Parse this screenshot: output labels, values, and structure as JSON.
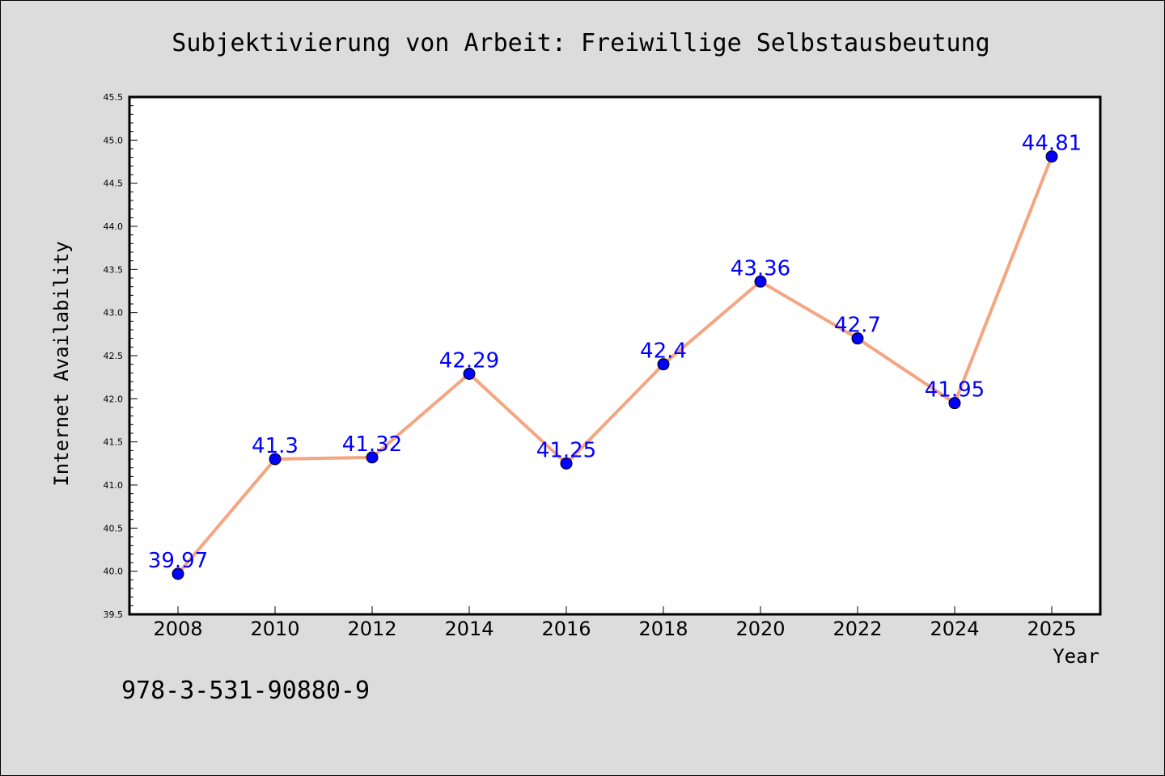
{
  "chart_data": {
    "type": "line",
    "title": "Subjektivierung von Arbeit: Freiwillige Selbstausbeutung",
    "xlabel": "Year",
    "ylabel": "Internet Availability",
    "categories": [
      "2008",
      "2010",
      "2012",
      "2014",
      "2016",
      "2018",
      "2020",
      "2022",
      "2024",
      "2025"
    ],
    "values": [
      39.97,
      41.3,
      41.32,
      42.29,
      41.25,
      42.4,
      43.36,
      42.7,
      41.95,
      44.81
    ],
    "data_labels": [
      "39.97",
      "41.3",
      "41.32",
      "42.29",
      "41.25",
      "42.4",
      "43.36",
      "42.7",
      "41.95",
      "44.81"
    ],
    "ylim": [
      39.5,
      45.5
    ],
    "yticks": [
      "39.5",
      "40.0",
      "40.5",
      "41.0",
      "41.5",
      "42.0",
      "42.5",
      "43.0",
      "43.5",
      "44.0",
      "44.5",
      "45.0",
      "45.5"
    ],
    "grid": false,
    "line_color": "#f4a582",
    "marker_color": "#0000ff",
    "label_color": "#0000ff"
  },
  "footnote": "978-3-531-90880-9"
}
